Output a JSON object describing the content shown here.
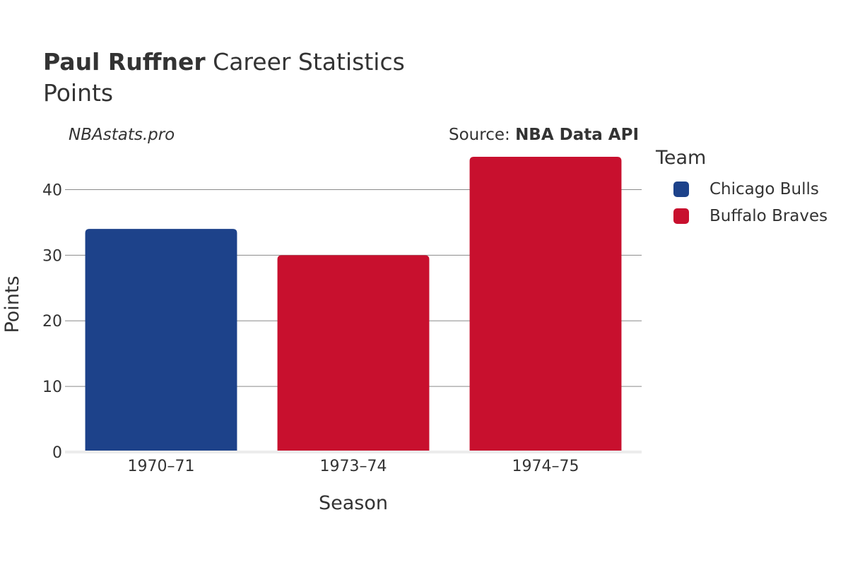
{
  "header": {
    "player_name": "Paul Ruffner",
    "title_suffix": "Career Statistics",
    "subtitle": "Points",
    "watermark": "NBAstats.pro",
    "source_prefix": "Source:",
    "source_name": "NBA Data API"
  },
  "legend": {
    "title": "Team",
    "items": [
      {
        "label": "Chicago Bulls",
        "color": "#1d428a"
      },
      {
        "label": "Buffalo Braves",
        "color": "#c8102e"
      }
    ]
  },
  "chart_data": {
    "type": "bar",
    "title": "Paul Ruffner Career Statistics",
    "subtitle": "Points",
    "xlabel": "Season",
    "ylabel": "Points",
    "categories": [
      "1970–71",
      "1973–74",
      "1974–75"
    ],
    "values": [
      34,
      30,
      45
    ],
    "teams": [
      "Chicago Bulls",
      "Buffalo Braves",
      "Buffalo Braves"
    ],
    "colors": [
      "#1d428a",
      "#c8102e",
      "#c8102e"
    ],
    "ylim": [
      0,
      45
    ],
    "yticks": [
      0,
      10,
      20,
      30,
      40
    ],
    "grid": true,
    "legend_position": "right"
  }
}
